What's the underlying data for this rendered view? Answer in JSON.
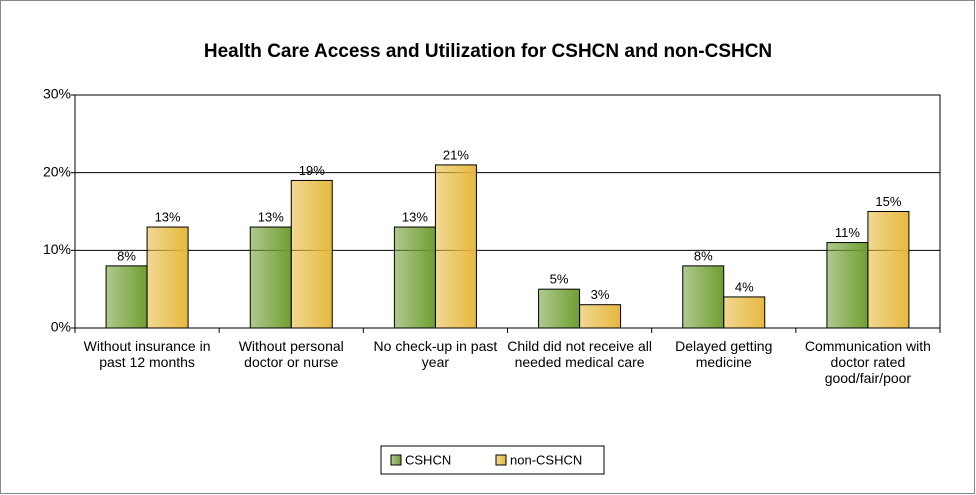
{
  "chart_data": {
    "type": "bar",
    "title": "Health Care Access and Utilization for CSHCN and non-CSHCN",
    "categories": [
      "Without insurance in past 12 months",
      "Without personal doctor or nurse",
      "No check-up in past year",
      "Child did not receive all needed medical care",
      "Delayed getting medicine",
      "Communication with doctor rated good/fair/poor"
    ],
    "series": [
      {
        "name": "CSHCN",
        "color": "#6f9e32",
        "values": [
          8,
          13,
          13,
          5,
          8,
          11
        ],
        "value_labels": [
          "8%",
          "13%",
          "13%",
          "5%",
          "8%",
          "11%"
        ]
      },
      {
        "name": "non-CSHCN",
        "color": "#e6b83c",
        "values": [
          13,
          19,
          21,
          3,
          4,
          15
        ],
        "value_labels": [
          "13%",
          "19%",
          "21%",
          "3%",
          "4%",
          "15%"
        ]
      }
    ],
    "ylim": [
      0,
      30
    ],
    "yticks": [
      {
        "value": 0,
        "label": "0%"
      },
      {
        "value": 10,
        "label": "10%"
      },
      {
        "value": 20,
        "label": "20%"
      },
      {
        "value": 30,
        "label": "30%"
      }
    ],
    "grid": true,
    "legend": "bottom"
  }
}
